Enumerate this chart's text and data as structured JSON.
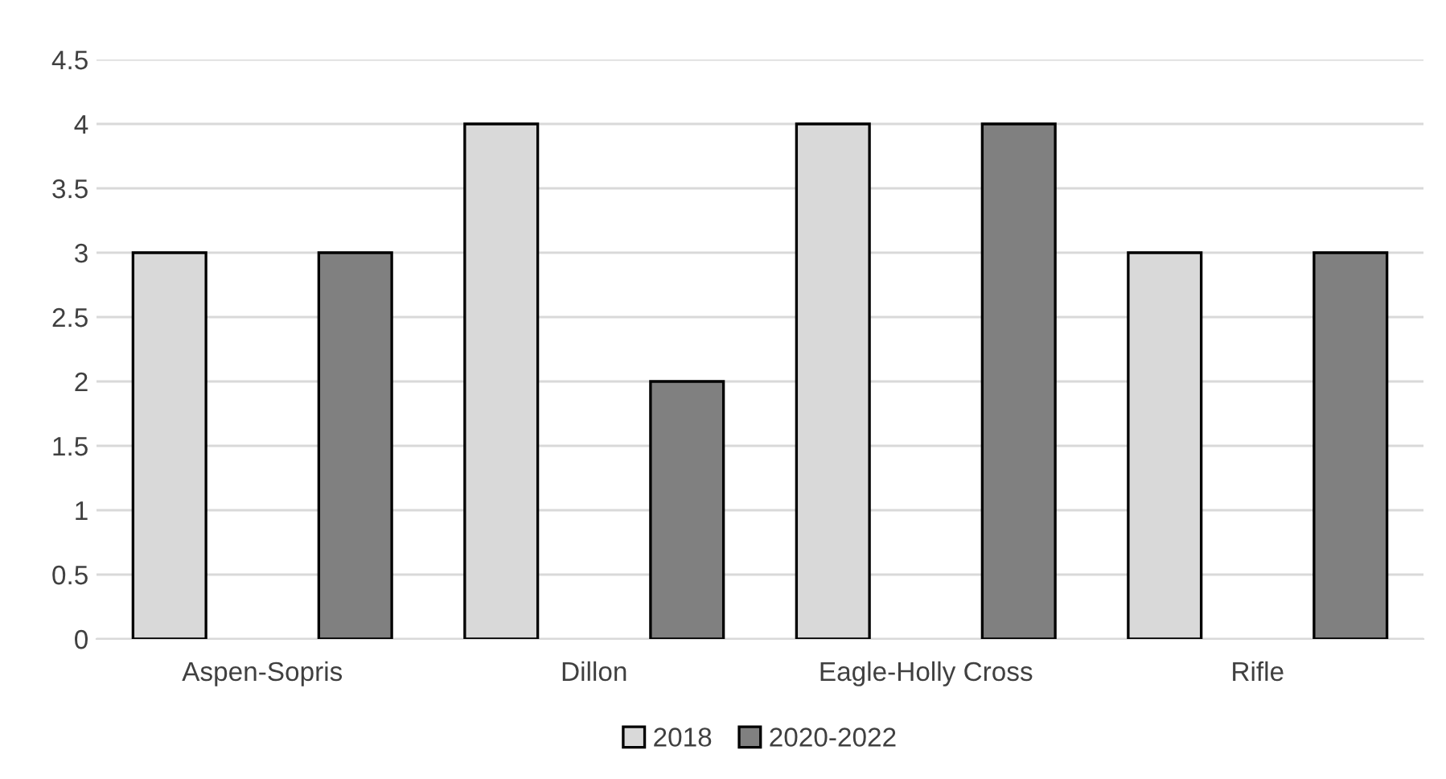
{
  "chart_data": {
    "type": "bar",
    "categories": [
      "Aspen-Sopris",
      "Dillon",
      "Eagle-Holly Cross",
      "Rifle"
    ],
    "series": [
      {
        "name": "2018",
        "color": "#d9d9d9",
        "values": [
          3,
          4,
          4,
          3
        ]
      },
      {
        "name": "2020-2022",
        "color": "#808080",
        "values": [
          3,
          2,
          4,
          3
        ]
      }
    ],
    "ylim": [
      0,
      4.5
    ],
    "yticks": [
      0,
      0.5,
      1,
      1.5,
      2,
      2.5,
      3,
      3.5,
      4,
      4.5
    ],
    "grid": "y",
    "legend": "bottom"
  }
}
